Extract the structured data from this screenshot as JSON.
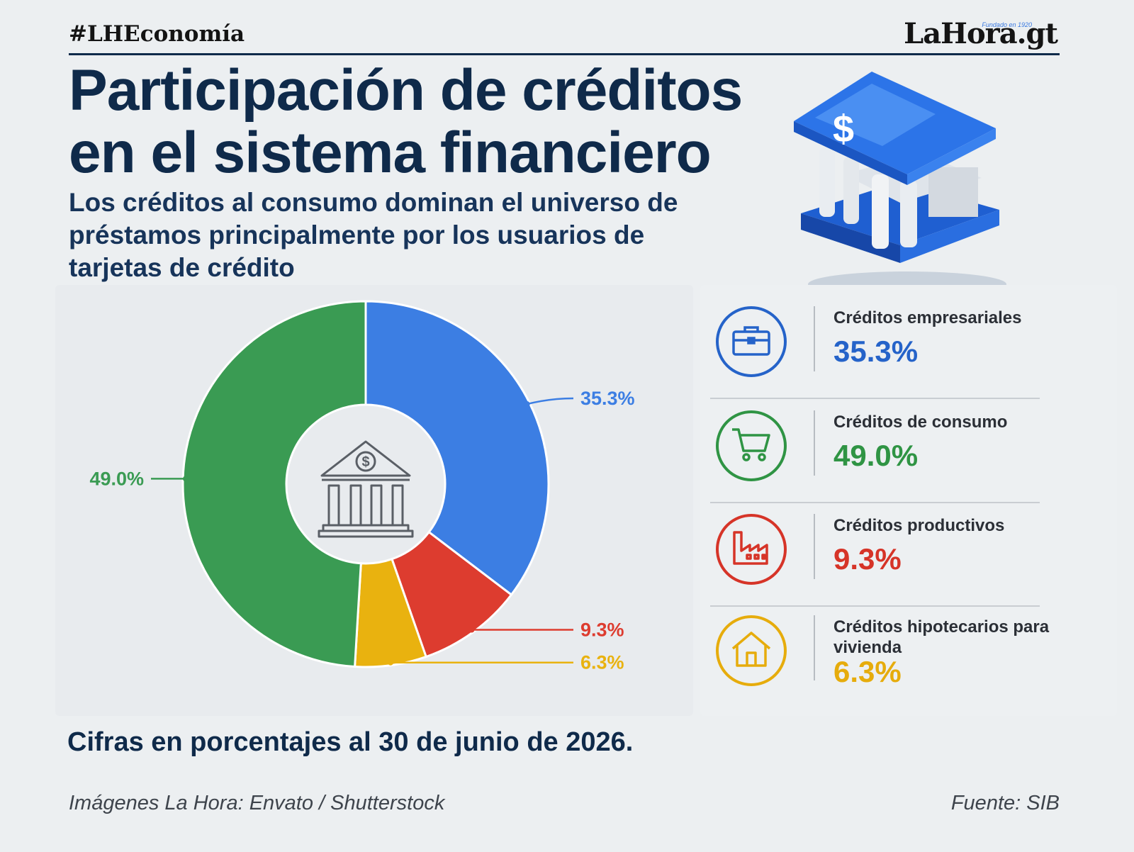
{
  "header": {
    "hashtag": "#LHEconomía",
    "logo": "LaHora.gt",
    "logo_tagline": "Fundado en 1920"
  },
  "title": "Participación de créditos en el sistema financiero",
  "subtitle": "Los créditos al consumo dominan el universo de préstamos principalmente por los usuarios de tarjetas de crédito",
  "chart_data": {
    "type": "pie",
    "donut": true,
    "categories": [
      "Créditos empresariales",
      "Créditos productivos",
      "Créditos hipotecarios para vivienda",
      "Créditos de consumo"
    ],
    "values": [
      35.3,
      9.3,
      6.3,
      49.0
    ],
    "data_labels": [
      "35.3%",
      "9.3%",
      "6.3%",
      "49.0%"
    ],
    "colors": [
      "#3c7ee3",
      "#dd3c2f",
      "#e9b20f",
      "#3a9b53"
    ],
    "legend_placement": "right"
  },
  "legend": [
    {
      "name": "Créditos empresariales",
      "value": "35.3%",
      "color": "#2563c9",
      "icon": "briefcase-icon"
    },
    {
      "name": "Créditos de consumo",
      "value": "49.0%",
      "color": "#2f9444",
      "icon": "shopping-cart-icon"
    },
    {
      "name": "Créditos productivos",
      "value": "9.3%",
      "color": "#d63428",
      "icon": "factory-icon"
    },
    {
      "name": "Créditos hipotecarios para vivienda",
      "value": "6.3%",
      "color": "#e6ac0c",
      "icon": "house-icon"
    }
  ],
  "footnote": "Cifras en porcentajes al 30 de junio de 2026.",
  "credits": "Imágenes La Hora: Envato / Shutterstock",
  "source": "Fuente: SIB"
}
